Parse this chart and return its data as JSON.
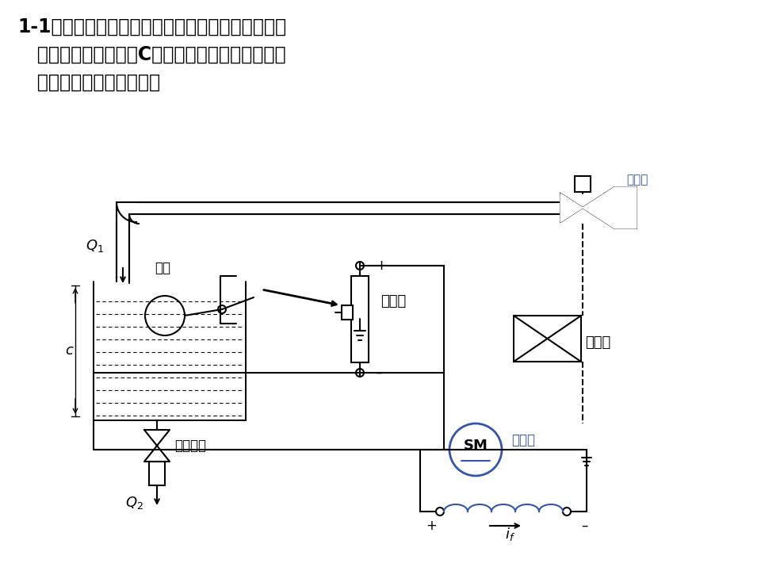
{
  "title_line1": "1-1下图是液位自动控制系统原理示意图。在任意情",
  "title_line2": "   况下，希望液面高度C维持不变，试说明系统工作",
  "title_line3": "   原理并画出系统方块图。",
  "bg_color": "#ffffff",
  "black": "#000000",
  "blue": "#3355aa",
  "font_size_title": 17
}
